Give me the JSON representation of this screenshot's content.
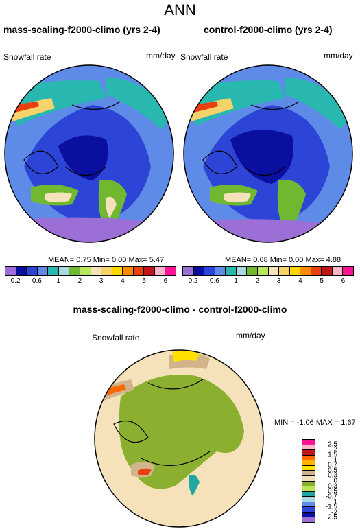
{
  "page": {
    "title": "ANN"
  },
  "panels": [
    {
      "heading": "mass-scaling-f2000-climo (yrs 2-4)",
      "variable": "Snowfall rate",
      "units": "mm/day",
      "stats": {
        "mean_label": "MEAN=",
        "mean": "0.75",
        "min_label": "Min=",
        "min": "0.00",
        "max_label": "Max=",
        "max": "5.47"
      }
    },
    {
      "heading": "control-f2000-climo (yrs 2-4)",
      "variable": "Snowfall rate",
      "units": "mm/day",
      "stats": {
        "mean_label": "MEAN=",
        "mean": "0.68",
        "min_label": "Min=",
        "min": "0.00",
        "max_label": "Max=",
        "max": "4.88"
      }
    }
  ],
  "difference_panel": {
    "heading": "mass-scaling-f2000-climo - control-f2000-climo",
    "variable": "Snowfall rate",
    "units": "mm/day",
    "stats": {
      "min_label": "MIN =",
      "min": "-1.06",
      "max_label": "MAX =",
      "max": "1.67"
    }
  },
  "colorbar_top": {
    "colors": [
      "#9B6FD6",
      "#0A0FA0",
      "#2C45D6",
      "#5E8BE8",
      "#28B8B0",
      "#A8D8E0",
      "#6FB830",
      "#B8E85A",
      "#F5E2BA",
      "#F5D36B",
      "#FFD700",
      "#FF8C00",
      "#E84010",
      "#C01818",
      "#FFB6C8",
      "#FF1493"
    ],
    "tick_labels": [
      "0.2",
      "0.6",
      "1",
      "2",
      "3",
      "4",
      "5",
      "6"
    ]
  },
  "colorbar_diff": {
    "colors": [
      "#FF1493",
      "#FFB6C8",
      "#C01818",
      "#FF6A00",
      "#FFB400",
      "#FFE000",
      "#D2B48C",
      "#F5E2BA",
      "#8BB030",
      "#B8E85A",
      "#20A8A0",
      "#A8D8E0",
      "#5E8BE8",
      "#2C45D6",
      "#0A0FA0",
      "#9B6FD6"
    ],
    "tick_labels": [
      "2.5",
      "2",
      "1.5",
      "1",
      "0.7",
      "0.5",
      "0.3",
      "0",
      "-0.3",
      "-0.5",
      "-0.7",
      "-1",
      "-1.5",
      "-2",
      "-2.5"
    ]
  },
  "colors": {
    "ocean_land_low": "#2C45D6",
    "diff_background": "#F5E2BA",
    "diff_land": "#8BB030"
  }
}
